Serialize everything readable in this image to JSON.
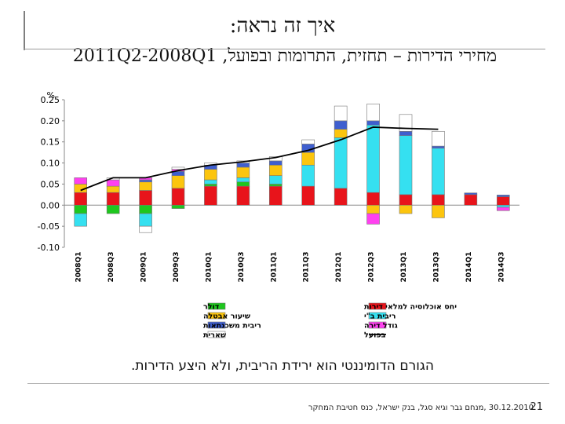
{
  "slide": {
    "title": "איך זה נראה:",
    "subtitle": "מחירי הדירות – תחזית, התרומות ובפועל, 2011Q2-2008Q1",
    "caption": "הגורם הדומיננטי הוא ירידת הריבית, ולא היצע הדירות.",
    "footer": "30.12.2010 ,מנחם גבר וגיא סגל, בנק ישראל, כנס חטיבת המחקר",
    "page_number": "21"
  },
  "chart_data": {
    "type": "stacked-bar-line",
    "ylabel": "%",
    "ylim": [
      -0.1,
      0.25
    ],
    "yticks": [
      "0.25",
      "0.20",
      "0.15",
      "0.10",
      "0.05",
      "0.00",
      "-0.05",
      "-0.10"
    ],
    "categories": [
      "2008Q1",
      "2008Q3",
      "2009Q1",
      "2009Q3",
      "2010Q1",
      "2010Q3",
      "2011Q1",
      "2011Q3",
      "2012Q1",
      "2012Q3",
      "2013Q1",
      "2013Q3",
      "2014Q1",
      "2014Q3"
    ],
    "series": [
      {
        "name": "יחס אוכלוסיה למלאי דירות",
        "color": "#e8141b",
        "values": [
          0.03,
          0.03,
          0.035,
          0.04,
          0.045,
          0.045,
          0.045,
          0.045,
          0.04,
          0.03,
          0.025,
          0.025,
          0.025,
          0.02
        ]
      },
      {
        "name": "דולר",
        "color": "#1ec71e",
        "values": [
          -0.02,
          -0.02,
          -0.02,
          -0.008,
          0.005,
          0.01,
          0.005,
          0.0,
          0.0,
          0.0,
          0.0,
          0.0,
          0.0,
          0.0
        ]
      },
      {
        "name": "ריבית ב\"י",
        "color": "#35e0f0",
        "values": [
          -0.03,
          0.0,
          -0.03,
          0.0,
          0.01,
          0.01,
          0.02,
          0.05,
          0.12,
          0.16,
          0.14,
          0.11,
          0.0,
          -0.005
        ]
      },
      {
        "name": "שיעור אבטלה",
        "color": "#fcc50e",
        "values": [
          0.02,
          0.015,
          0.02,
          0.03,
          0.025,
          0.025,
          0.025,
          0.03,
          0.02,
          -0.02,
          -0.02,
          -0.03,
          0.0,
          0.0
        ]
      },
      {
        "name": "ריבית משכנתאות",
        "color": "#3f5fcf",
        "values": [
          0.0,
          0.0,
          0.005,
          0.01,
          0.01,
          0.01,
          0.01,
          0.02,
          0.02,
          0.01,
          0.01,
          0.005,
          0.004,
          0.004
        ]
      },
      {
        "name": "גודל דירה",
        "color": "#ff40ef",
        "values": [
          0.015,
          0.015,
          0.005,
          0.005,
          0.0,
          0.0,
          0.0,
          0.0,
          0.0,
          -0.025,
          0.0,
          0.0,
          0.0,
          -0.008
        ]
      },
      {
        "name": "שארית",
        "color": "#ffffff",
        "values": [
          0.0,
          0.005,
          -0.015,
          0.005,
          0.005,
          0.005,
          0.01,
          0.01,
          0.035,
          0.04,
          0.04,
          0.035,
          0.0,
          0.0
        ]
      }
    ],
    "line": {
      "name": "בפועל",
      "color": "#000000",
      "values": [
        0.035,
        0.065,
        0.065,
        0.082,
        0.095,
        0.103,
        0.113,
        0.13,
        0.155,
        0.185,
        0.182,
        0.18
      ]
    },
    "legend": {
      "placement": "bottom",
      "columns": [
        [
          "יחס אוכלוסיה למלאי דירות",
          "ריבית ב\"י",
          "גודל דירה",
          "בפועל"
        ],
        [
          "דולר",
          "שיעור אבטלה",
          "ריבית משכנתאות",
          "שארית"
        ]
      ]
    }
  }
}
